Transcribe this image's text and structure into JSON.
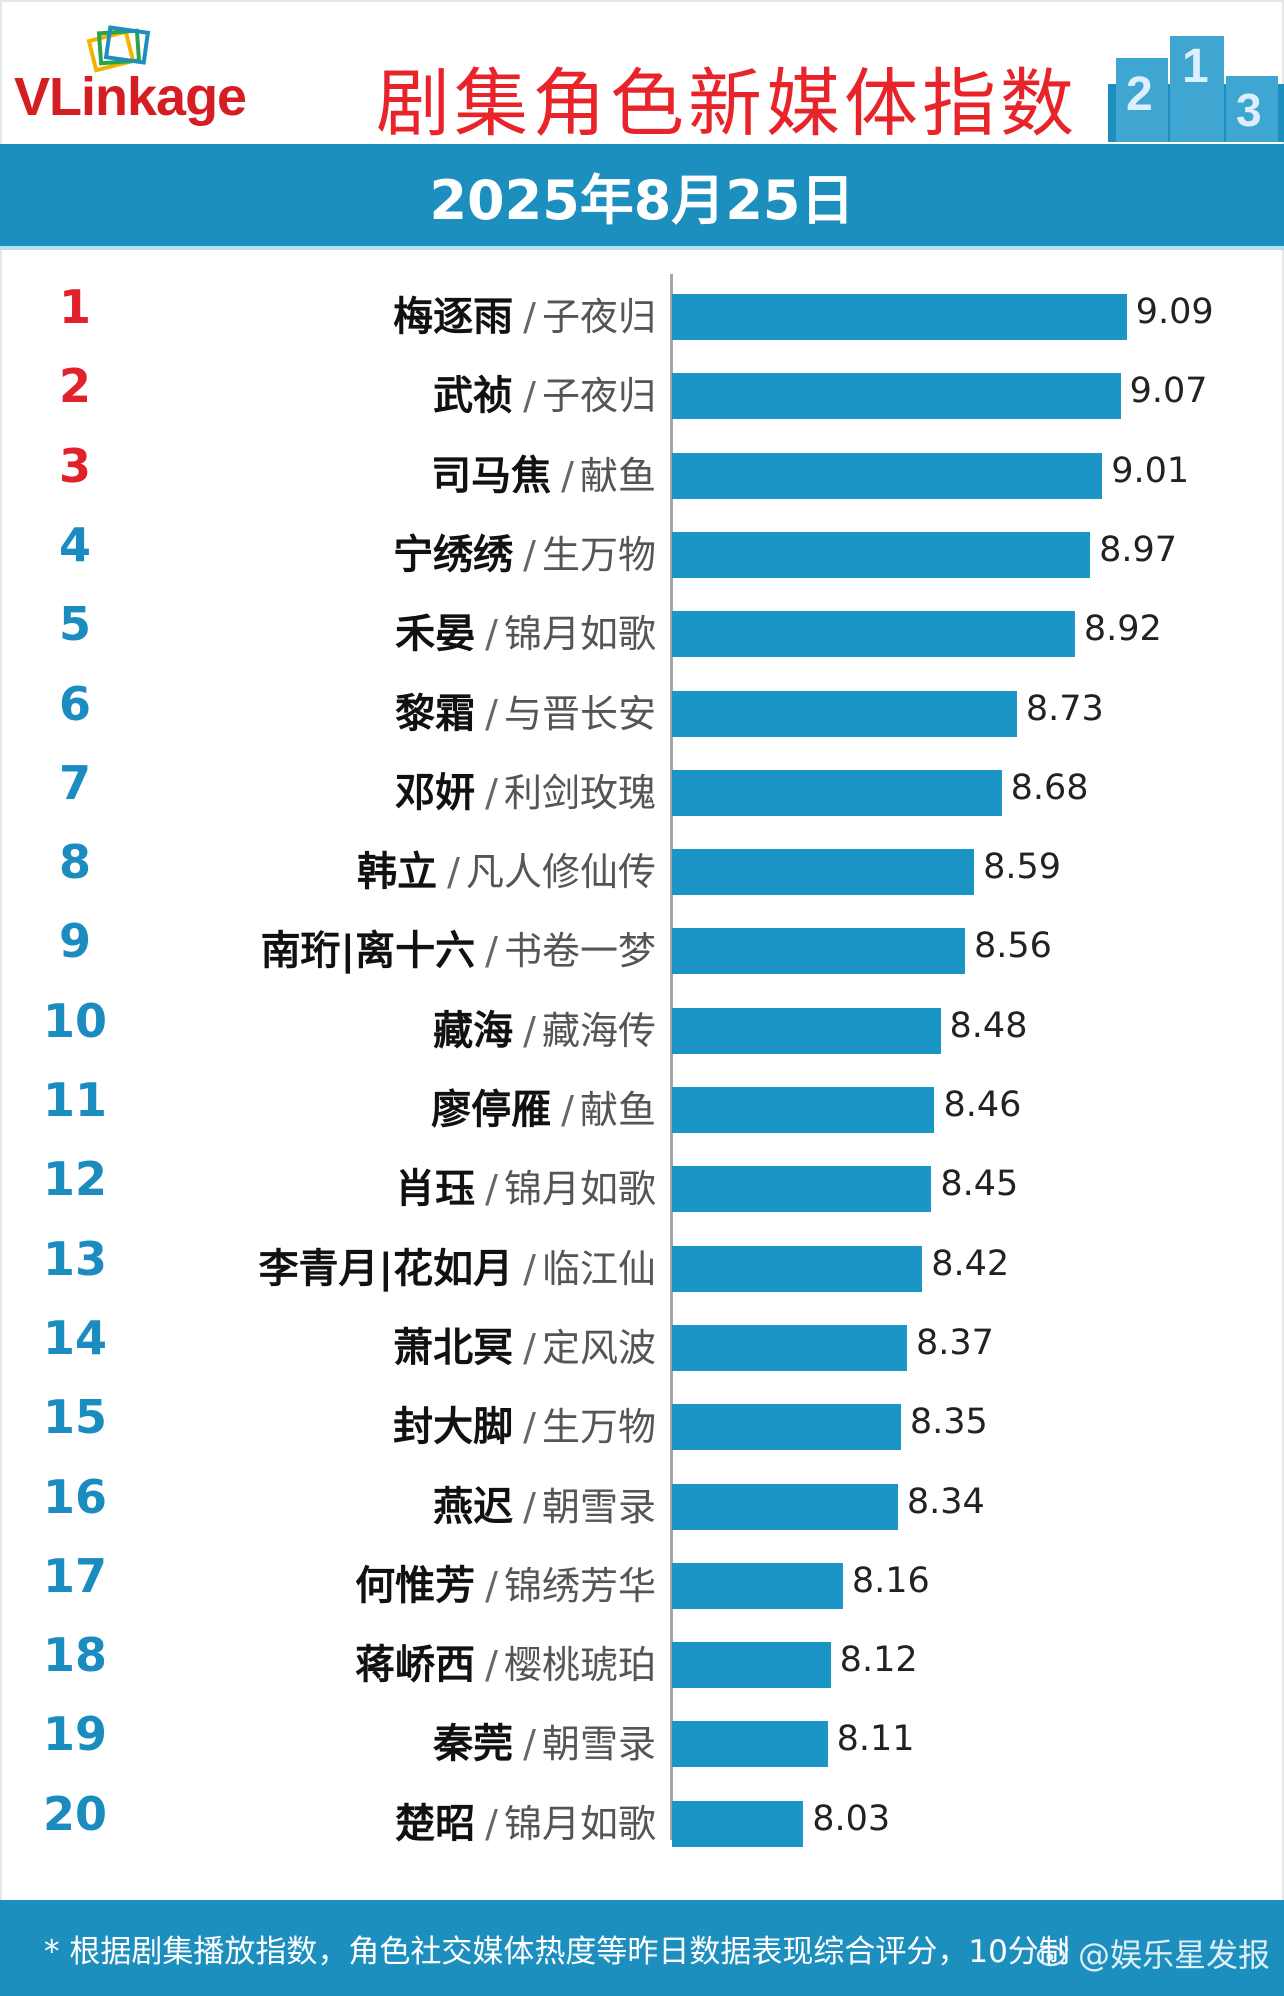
{
  "header": {
    "logo_text_vl": "VLink",
    "logo_text_rest": "age",
    "title": "剧集角色新媒体指数",
    "podium_digits": [
      "2",
      "1",
      "3"
    ],
    "date": "2025年8月25日"
  },
  "footer": {
    "note": "* 根据剧集播放指数，角色社交媒体热度等昨日数据表现综合评分，10分制",
    "watermark": "@娱乐星发报"
  },
  "colors": {
    "bar": "#1b95c6",
    "band": "#1d8fbe",
    "title_red": "#e8242a",
    "rank_top": "#e2222b",
    "rank_other": "#1a8cc0"
  },
  "chart_data": {
    "type": "bar",
    "orientation": "horizontal",
    "title": "剧集角色新媒体指数",
    "subtitle": "2025年8月25日",
    "xlim": [
      7.6,
      9.15
    ],
    "rows": [
      {
        "rank": "1",
        "name": "梅逐雨",
        "show": "子夜归",
        "value": 9.09
      },
      {
        "rank": "2",
        "name": "武祯",
        "show": "子夜归",
        "value": 9.07
      },
      {
        "rank": "3",
        "name": "司马焦",
        "show": "献鱼",
        "value": 9.01
      },
      {
        "rank": "4",
        "name": "宁绣绣",
        "show": "生万物",
        "value": 8.97
      },
      {
        "rank": "5",
        "name": "禾晏",
        "show": "锦月如歌",
        "value": 8.92
      },
      {
        "rank": "6",
        "name": "黎霜",
        "show": "与晋长安",
        "value": 8.73
      },
      {
        "rank": "7",
        "name": "邓妍",
        "show": "利剑玫瑰",
        "value": 8.68
      },
      {
        "rank": "8",
        "name": "韩立",
        "show": "凡人修仙传",
        "value": 8.59
      },
      {
        "rank": "9",
        "name": "南珩|离十六",
        "show": "书卷一梦",
        "value": 8.56
      },
      {
        "rank": "10",
        "name": "藏海",
        "show": "藏海传",
        "value": 8.48
      },
      {
        "rank": "11",
        "name": "廖停雁",
        "show": "献鱼",
        "value": 8.46
      },
      {
        "rank": "12",
        "name": "肖珏",
        "show": "锦月如歌",
        "value": 8.45
      },
      {
        "rank": "13",
        "name": "李青月|花如月",
        "show": "临江仙",
        "value": 8.42
      },
      {
        "rank": "14",
        "name": "萧北冥",
        "show": "定风波",
        "value": 8.37
      },
      {
        "rank": "15",
        "name": "封大脚",
        "show": "生万物",
        "value": 8.35
      },
      {
        "rank": "16",
        "name": "燕迟",
        "show": "朝雪录",
        "value": 8.34
      },
      {
        "rank": "17",
        "name": "何惟芳",
        "show": "锦绣芳华",
        "value": 8.16
      },
      {
        "rank": "18",
        "name": "蒋峤西",
        "show": "樱桃琥珀",
        "value": 8.12
      },
      {
        "rank": "19",
        "name": "秦莞",
        "show": "朝雪录",
        "value": 8.11
      },
      {
        "rank": "20",
        "name": "楚昭",
        "show": "锦月如歌",
        "value": 8.03
      }
    ]
  }
}
